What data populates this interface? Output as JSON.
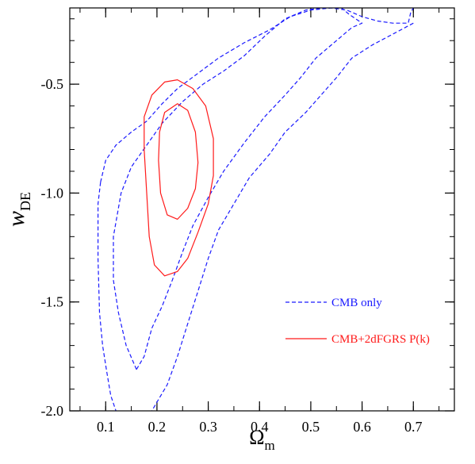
{
  "chart_data": {
    "type": "contour",
    "xlabel": "Ω",
    "xlabel_sub": "m",
    "ylabel": "w",
    "ylabel_sub": "DE",
    "xlim": [
      0.03,
      0.78
    ],
    "ylim": [
      -2.0,
      -0.15
    ],
    "xticks": [
      {
        "value": 0.1,
        "label": "0.1"
      },
      {
        "value": 0.2,
        "label": "0.2"
      },
      {
        "value": 0.3,
        "label": "0.3"
      },
      {
        "value": 0.4,
        "label": "0.4"
      },
      {
        "value": 0.5,
        "label": "0.5"
      },
      {
        "value": 0.6,
        "label": "0.6"
      },
      {
        "value": 0.7,
        "label": "0.7"
      }
    ],
    "yticks": [
      {
        "value": -2.0,
        "label": "-2.0"
      },
      {
        "value": -1.5,
        "label": "-1.5"
      },
      {
        "value": -1.0,
        "label": "-1.0"
      },
      {
        "value": -0.5,
        "label": "-0.5"
      }
    ],
    "minor_step_x": 0.05,
    "minor_step_y": 0.1,
    "legend": {
      "position": "bottom-right",
      "entries": [
        {
          "label": "CMB only",
          "color": "#1a1aff",
          "dash": true
        },
        {
          "label": "CMB+2dFGRS P(k)",
          "color": "#ff1a1a",
          "dash": false
        }
      ]
    },
    "series": [
      {
        "name": "CMB only",
        "color": "#1a1aff",
        "dashed": true,
        "contours": [
          {
            "closed": false,
            "points": [
              [
                0.09,
                -0.95
              ],
              [
                0.1,
                -0.85
              ],
              [
                0.12,
                -0.78
              ],
              [
                0.15,
                -0.72
              ],
              [
                0.18,
                -0.67
              ],
              [
                0.21,
                -0.59
              ],
              [
                0.24,
                -0.52
              ],
              [
                0.28,
                -0.45
              ],
              [
                0.32,
                -0.38
              ],
              [
                0.37,
                -0.31
              ],
              [
                0.42,
                -0.25
              ],
              [
                0.46,
                -0.19
              ],
              [
                0.5,
                -0.16
              ],
              [
                0.54,
                -0.15
              ],
              [
                0.57,
                -0.16
              ],
              [
                0.6,
                -0.19
              ],
              [
                0.63,
                -0.21
              ],
              [
                0.66,
                -0.22
              ],
              [
                0.69,
                -0.22
              ],
              [
                0.695,
                -0.17
              ],
              [
                0.7,
                -0.15
              ]
            ]
          },
          {
            "closed": false,
            "points": [
              [
                0.09,
                -0.95
              ],
              [
                0.085,
                -1.05
              ],
              [
                0.085,
                -1.3
              ],
              [
                0.088,
                -1.55
              ],
              [
                0.094,
                -1.7
              ],
              [
                0.102,
                -1.82
              ],
              [
                0.11,
                -1.93
              ],
              [
                0.12,
                -2.0
              ]
            ]
          },
          {
            "closed": false,
            "points": [
              [
                0.7,
                -0.22
              ],
              [
                0.66,
                -0.27
              ],
              [
                0.62,
                -0.32
              ],
              [
                0.58,
                -0.38
              ],
              [
                0.55,
                -0.47
              ],
              [
                0.52,
                -0.55
              ],
              [
                0.49,
                -0.63
              ],
              [
                0.45,
                -0.72
              ],
              [
                0.42,
                -0.82
              ],
              [
                0.38,
                -0.93
              ],
              [
                0.35,
                -1.05
              ],
              [
                0.32,
                -1.17
              ],
              [
                0.3,
                -1.3
              ],
              [
                0.28,
                -1.45
              ],
              [
                0.26,
                -1.6
              ],
              [
                0.24,
                -1.75
              ],
              [
                0.22,
                -1.88
              ],
              [
                0.2,
                -1.96
              ],
              [
                0.19,
                -2.0
              ]
            ]
          },
          {
            "closed": false,
            "points": [
              [
                0.16,
                -1.81
              ],
              [
                0.14,
                -1.7
              ],
              [
                0.125,
                -1.55
              ],
              [
                0.115,
                -1.4
              ],
              [
                0.115,
                -1.2
              ],
              [
                0.13,
                -1.0
              ],
              [
                0.15,
                -0.88
              ],
              [
                0.18,
                -0.78
              ],
              [
                0.21,
                -0.68
              ],
              [
                0.25,
                -0.58
              ],
              [
                0.29,
                -0.5
              ],
              [
                0.33,
                -0.44
              ],
              [
                0.37,
                -0.37
              ],
              [
                0.41,
                -0.28
              ],
              [
                0.45,
                -0.2
              ],
              [
                0.49,
                -0.16
              ],
              [
                0.52,
                -0.15
              ]
            ]
          },
          {
            "closed": false,
            "points": [
              [
                0.16,
                -1.81
              ],
              [
                0.175,
                -1.75
              ],
              [
                0.19,
                -1.62
              ],
              [
                0.21,
                -1.52
              ],
              [
                0.23,
                -1.4
              ],
              [
                0.25,
                -1.27
              ],
              [
                0.27,
                -1.15
              ],
              [
                0.3,
                -1.02
              ],
              [
                0.33,
                -0.9
              ],
              [
                0.37,
                -0.77
              ],
              [
                0.41,
                -0.65
              ],
              [
                0.45,
                -0.55
              ],
              [
                0.48,
                -0.47
              ],
              [
                0.51,
                -0.38
              ],
              [
                0.55,
                -0.3
              ],
              [
                0.58,
                -0.24
              ],
              [
                0.6,
                -0.22
              ],
              [
                0.575,
                -0.18
              ],
              [
                0.56,
                -0.15
              ]
            ]
          }
        ]
      },
      {
        "name": "CMB+2dFGRS P(k)",
        "color": "#ff1a1a",
        "dashed": false,
        "contours": [
          {
            "closed": true,
            "points": [
              [
                0.24,
                -0.48
              ],
              [
                0.27,
                -0.52
              ],
              [
                0.295,
                -0.6
              ],
              [
                0.31,
                -0.75
              ],
              [
                0.31,
                -0.92
              ],
              [
                0.3,
                -1.05
              ],
              [
                0.28,
                -1.18
              ],
              [
                0.26,
                -1.3
              ],
              [
                0.24,
                -1.36
              ],
              [
                0.215,
                -1.38
              ],
              [
                0.195,
                -1.33
              ],
              [
                0.185,
                -1.2
              ],
              [
                0.18,
                -1.0
              ],
              [
                0.175,
                -0.8
              ],
              [
                0.175,
                -0.65
              ],
              [
                0.19,
                -0.55
              ],
              [
                0.215,
                -0.49
              ]
            ]
          },
          {
            "closed": true,
            "points": [
              [
                0.24,
                -0.59
              ],
              [
                0.26,
                -0.62
              ],
              [
                0.275,
                -0.72
              ],
              [
                0.28,
                -0.86
              ],
              [
                0.275,
                -0.98
              ],
              [
                0.26,
                -1.07
              ],
              [
                0.24,
                -1.12
              ],
              [
                0.22,
                -1.1
              ],
              [
                0.207,
                -1.0
              ],
              [
                0.203,
                -0.85
              ],
              [
                0.205,
                -0.72
              ],
              [
                0.215,
                -0.63
              ]
            ]
          }
        ]
      }
    ]
  }
}
